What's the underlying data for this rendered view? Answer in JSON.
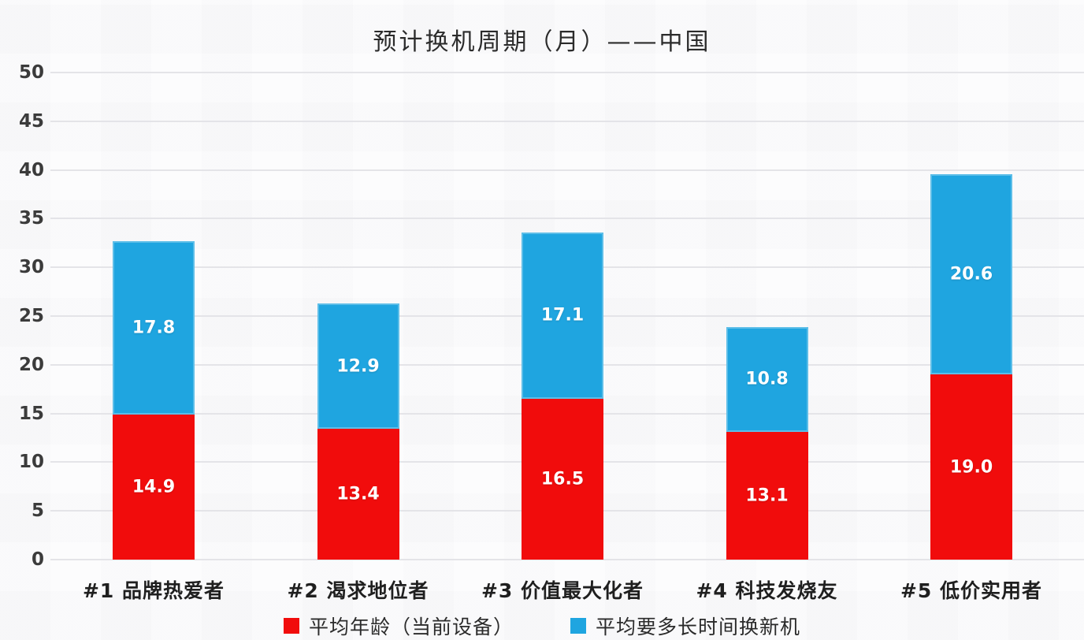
{
  "title": "预计换机周期（月）——中国",
  "colors": {
    "red": "#F10C0C",
    "blue": "#1FA5E0",
    "grid": "#E4E4E8",
    "tick_label": "#3B3B3B",
    "category_label": "#1F1F1F",
    "value_label": "#FFFFFF",
    "background": "#FCFCFD"
  },
  "chart_data": {
    "type": "bar",
    "stacked": true,
    "title": "预计换机周期（月）——中国",
    "xlabel": "",
    "ylabel": "",
    "categories": [
      "#1 品牌热爱者",
      "#2 渴求地位者",
      "#3 价值最大化者",
      "#4 科技发烧友",
      "#5 低价实用者"
    ],
    "series": [
      {
        "name": "平均年龄（当前设备）",
        "color": "#F10C0C",
        "values": [
          14.9,
          13.4,
          16.5,
          13.1,
          19.0
        ]
      },
      {
        "name": "平均要多长时间换新机",
        "color": "#1FA5E0",
        "values": [
          17.8,
          12.9,
          17.1,
          10.8,
          20.6
        ]
      }
    ],
    "totals": [
      32.7,
      26.3,
      33.6,
      23.9,
      39.6
    ],
    "ylim": [
      0,
      50
    ],
    "ytick_step": 5,
    "yticks": [
      0,
      5,
      10,
      15,
      20,
      25,
      30,
      35,
      40,
      45,
      50
    ],
    "grid": true,
    "value_labels": "inside-center",
    "legend_position": "bottom"
  },
  "legend": {
    "items": [
      {
        "label": "平均年龄（当前设备）",
        "color": "#F10C0C"
      },
      {
        "label": "平均要多长时间换新机",
        "color": "#1FA5E0"
      }
    ]
  }
}
